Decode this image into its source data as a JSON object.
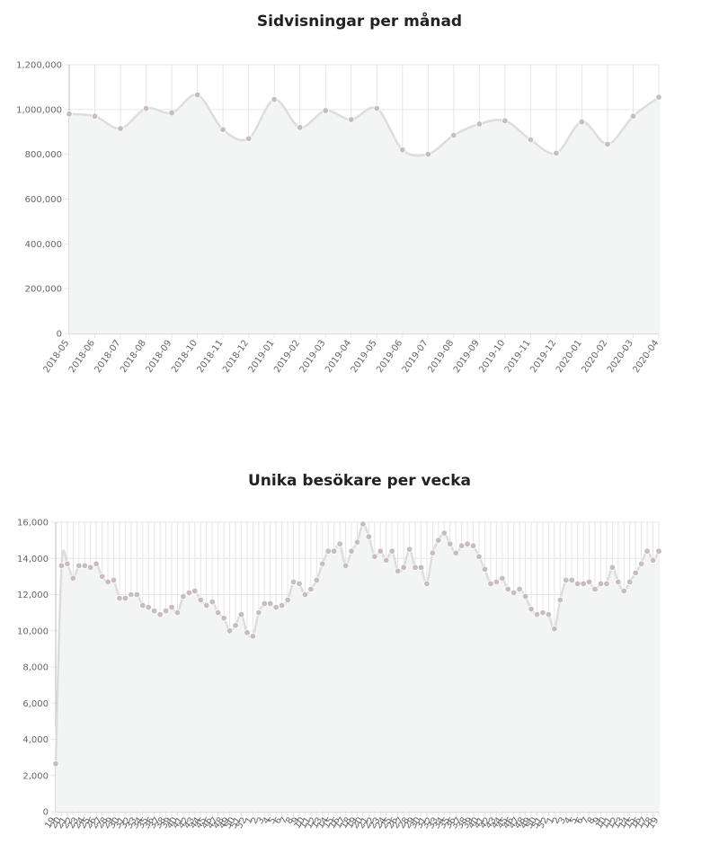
{
  "chart_data": [
    {
      "type": "line",
      "title": "Sidvisningar per månad",
      "ylim": [
        0,
        1200000
      ],
      "y_ticks": [
        0,
        200000,
        400000,
        600000,
        800000,
        1000000,
        1200000
      ],
      "y_tick_labels": [
        "0",
        "200,000",
        "400,000",
        "600,000",
        "800,000",
        "1,000,000",
        "1,200,000"
      ],
      "grid": true,
      "fill": true,
      "line_color": "#dddddd",
      "fill_color": "#f2f5f4",
      "point_color": "#c8bcbc",
      "categories": [
        "2018-05",
        "2018-06",
        "2018-07",
        "2018-08",
        "2018-09",
        "2018-10",
        "2018-11",
        "2018-12",
        "2019-01",
        "2019-02",
        "2019-03",
        "2019-04",
        "2019-05",
        "2019-06",
        "2019-07",
        "2019-08",
        "2019-09",
        "2019-10",
        "2019-11",
        "2019-12",
        "2020-01",
        "2020-02",
        "2020-03",
        "2020-04"
      ],
      "values": [
        980000,
        970000,
        915000,
        1005000,
        985000,
        1065000,
        910000,
        870000,
        1045000,
        920000,
        995000,
        955000,
        1005000,
        820000,
        800000,
        885000,
        935000,
        950000,
        865000,
        805000,
        945000,
        845000,
        970000,
        1055000
      ]
    },
    {
      "type": "line",
      "title": "Unika besökare per vecka",
      "ylim": [
        0,
        16000
      ],
      "y_ticks": [
        0,
        2000,
        4000,
        6000,
        8000,
        10000,
        12000,
        14000,
        16000
      ],
      "y_tick_labels": [
        "0",
        "2,000",
        "4,000",
        "6,000",
        "8,000",
        "10,000",
        "12,000",
        "14,000",
        "16,000"
      ],
      "grid": true,
      "fill": true,
      "line_color": "#dddddd",
      "fill_color": "#f2f5f4",
      "point_color": "#c8bcbc",
      "categories": [
        "19",
        "20",
        "21",
        "22",
        "23",
        "24",
        "25",
        "26",
        "27",
        "28",
        "29",
        "30",
        "31",
        "32",
        "33",
        "34",
        "35",
        "36",
        "37",
        "38",
        "39",
        "40",
        "41",
        "42",
        "43",
        "44",
        "45",
        "46",
        "47",
        "48",
        "49",
        "50",
        "51",
        "52",
        "1",
        "2",
        "3",
        "4",
        "5",
        "6",
        "7",
        "8",
        "9",
        "10",
        "11",
        "12",
        "13",
        "14",
        "15",
        "16",
        "17",
        "18",
        "19",
        "20",
        "21",
        "22",
        "23",
        "24",
        "25",
        "26",
        "27",
        "28",
        "29",
        "30",
        "31",
        "32",
        "33",
        "34",
        "35",
        "36",
        "37",
        "38",
        "39",
        "40",
        "41",
        "42",
        "43",
        "44",
        "45",
        "46",
        "47",
        "48",
        "49",
        "50",
        "51",
        "52",
        "1",
        "2",
        "3",
        "4",
        "5",
        "6",
        "7",
        "8",
        "9",
        "10",
        "11",
        "12",
        "13",
        "14",
        "15",
        "16",
        "17",
        "18",
        "19"
      ],
      "values": [
        2650,
        13600,
        13700,
        12900,
        13600,
        13600,
        13500,
        13700,
        13000,
        12700,
        12800,
        11800,
        11800,
        12000,
        12000,
        11400,
        11300,
        11100,
        10900,
        11100,
        11300,
        11000,
        11900,
        12100,
        12200,
        11700,
        11400,
        11600,
        11000,
        10700,
        10000,
        10300,
        10900,
        9900,
        9700,
        11000,
        11500,
        11500,
        11300,
        11400,
        11700,
        12700,
        12600,
        12000,
        12300,
        12800,
        13700,
        14400,
        14400,
        14800,
        13600,
        14400,
        14900,
        15900,
        15200,
        14100,
        14400,
        13900,
        14400,
        13300,
        13500,
        14500,
        13500,
        13500,
        12600,
        14300,
        15000,
        15400,
        14800,
        14300,
        14700,
        14800,
        14700,
        14100,
        13400,
        12600,
        12700,
        12900,
        12300,
        12100,
        12300,
        11900,
        11200,
        10900,
        11000,
        10900,
        10100,
        11700,
        12800,
        12800,
        12600,
        12600,
        12700,
        12300,
        12600,
        12600,
        13500,
        12700,
        12200,
        12700,
        13200,
        13700,
        14400,
        13900,
        14400
      ]
    }
  ]
}
